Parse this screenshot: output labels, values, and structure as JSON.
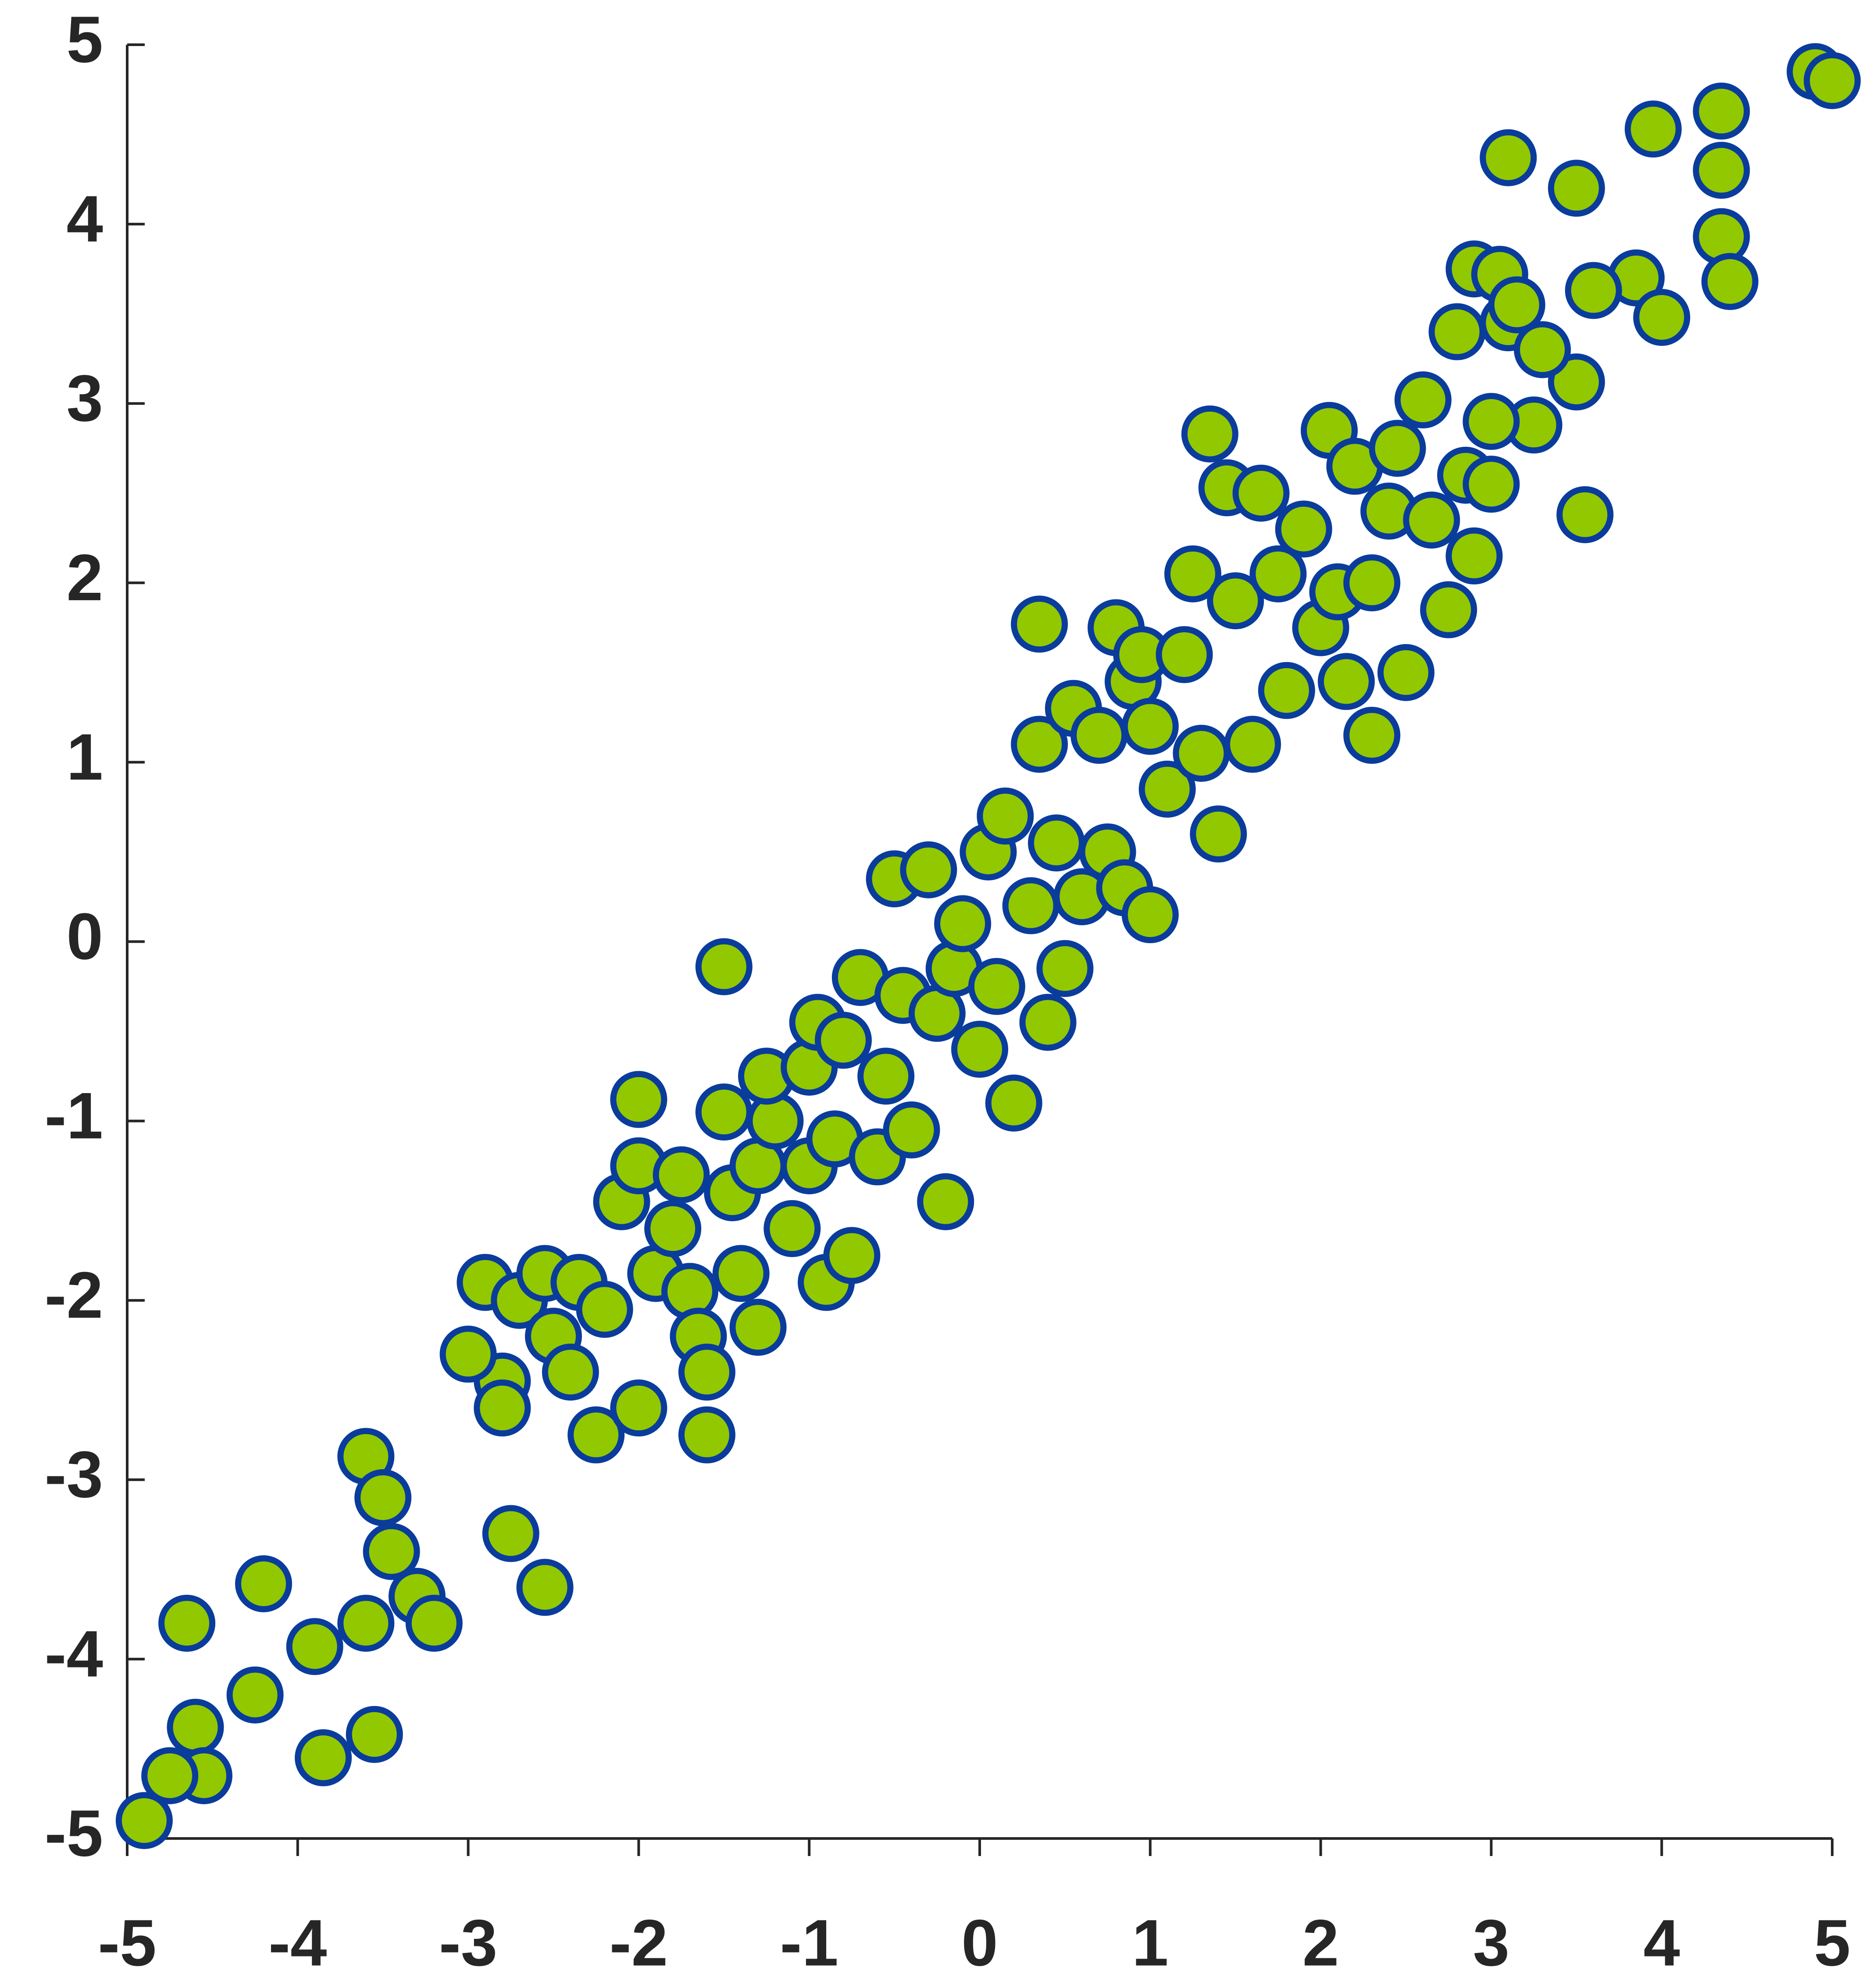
{
  "chart_data": {
    "type": "scatter",
    "color": "#92c800",
    "edgecolor": "#0a3c9c",
    "xlim": [
      -5,
      5
    ],
    "ylim": [
      -5,
      5
    ],
    "xticks": [
      -5,
      -4,
      -3,
      -2,
      -1,
      0,
      1,
      2,
      3,
      4,
      5
    ],
    "yticks": [
      -5,
      -4,
      -3,
      -2,
      -1,
      0,
      1,
      2,
      3,
      4,
      5
    ],
    "x": [
      4.9,
      5.0,
      3.95,
      4.35,
      4.35,
      3.1,
      3.5,
      4.35,
      4.4,
      3.85,
      4.0,
      3.6,
      2.9,
      3.05,
      3.1,
      3.5,
      3.25,
      3.55,
      1.35,
      1.45,
      0.35,
      -1.5,
      -1.6,
      -2.0,
      -4.65,
      -4.6,
      -4.55,
      -4.75,
      -4.9,
      -4.2,
      -4.25,
      -3.85,
      -3.55,
      -3.9,
      -3.6,
      -3.6,
      -3.5,
      -3.45,
      -3.3,
      -3.2,
      -2.55,
      -2.75,
      -2.8,
      -3.0,
      -2.9,
      -2.8,
      -2.7,
      -2.55,
      -2.5,
      -2.4,
      -2.35,
      -2.25,
      -2.2,
      -2.1,
      -2.0,
      -2.0,
      -1.9,
      -1.8,
      -1.75,
      -1.7,
      -1.65,
      -1.6,
      -1.5,
      -1.45,
      -1.4,
      -1.3,
      -1.3,
      -1.2,
      -1.25,
      -1.1,
      -1.0,
      -1.0,
      -0.95,
      -0.9,
      -0.85,
      -0.8,
      -0.75,
      -0.7,
      -0.6,
      -0.55,
      -0.5,
      -0.45,
      -0.4,
      -0.3,
      -0.25,
      -0.2,
      -0.15,
      -0.1,
      0.0,
      0.05,
      0.1,
      0.15,
      0.2,
      0.3,
      0.35,
      0.4,
      0.45,
      0.5,
      0.55,
      0.6,
      0.7,
      0.75,
      0.8,
      0.85,
      0.9,
      0.95,
      1.0,
      1.0,
      1.1,
      1.2,
      1.25,
      1.3,
      1.4,
      1.5,
      1.6,
      1.65,
      1.75,
      1.8,
      1.9,
      2.0,
      2.05,
      2.1,
      2.15,
      2.2,
      2.3,
      2.3,
      2.4,
      2.45,
      2.5,
      2.6,
      2.65,
      2.75,
      2.8,
      2.85,
      2.9,
      3.0,
      3.0,
      3.15,
      3.3
    ],
    "y": [
      4.85,
      4.8,
      4.53,
      4.63,
      4.3,
      4.37,
      4.2,
      3.93,
      3.68,
      3.7,
      3.48,
      3.63,
      3.75,
      3.72,
      3.45,
      3.12,
      2.88,
      2.38,
      2.83,
      2.53,
      1.77,
      -0.14,
      -2.75,
      -0.88,
      -3.8,
      -4.38,
      -4.65,
      -4.65,
      -4.9,
      -3.58,
      -4.2,
      -4.55,
      -4.42,
      -3.93,
      -3.8,
      -2.87,
      -3.1,
      -3.4,
      -3.65,
      -3.8,
      -3.6,
      -3.3,
      -2.45,
      -2.3,
      -1.9,
      -2.6,
      -2.0,
      -1.85,
      -2.2,
      -2.4,
      -1.9,
      -2.75,
      -2.05,
      -1.45,
      -1.25,
      -2.6,
      -1.85,
      -1.6,
      -1.3,
      -1.95,
      -2.2,
      -2.4,
      -0.95,
      -1.4,
      -1.85,
      -1.25,
      -2.15,
      -1.0,
      -0.75,
      -1.6,
      -0.7,
      -1.25,
      -0.45,
      -1.9,
      -1.1,
      -0.55,
      -1.75,
      -0.2,
      -1.2,
      -0.75,
      0.35,
      -0.3,
      -1.05,
      0.4,
      -0.4,
      -1.45,
      -0.15,
      0.1,
      -0.6,
      0.5,
      -0.25,
      0.7,
      -0.9,
      0.2,
      1.1,
      -0.45,
      0.55,
      -0.15,
      1.3,
      0.25,
      1.15,
      0.5,
      1.75,
      0.3,
      1.45,
      1.6,
      0.15,
      1.2,
      0.85,
      1.6,
      2.05,
      1.05,
      0.6,
      1.9,
      1.1,
      2.5,
      2.05,
      1.4,
      2.3,
      1.75,
      2.85,
      1.95,
      1.45,
      2.65,
      1.15,
      2.0,
      2.4,
      2.75,
      1.5,
      3.02,
      2.35,
      1.85,
      3.4,
      2.6,
      2.15,
      2.55,
      2.9,
      3.55,
      3.3
    ]
  }
}
